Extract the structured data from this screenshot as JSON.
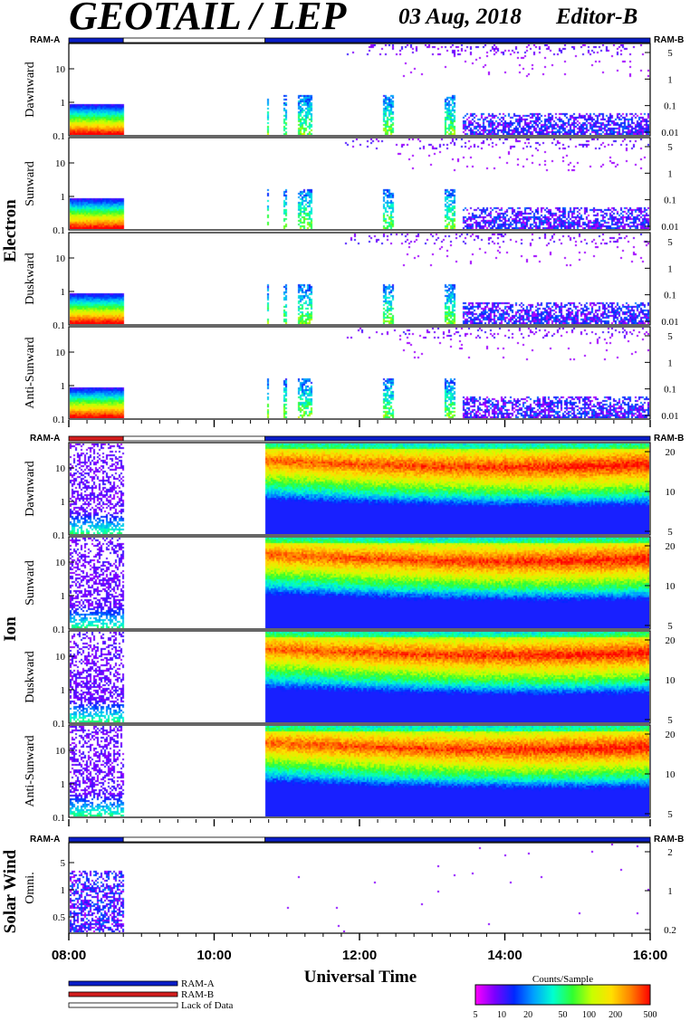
{
  "header": {
    "title": "GEOTAIL / LEP",
    "date": "03 Aug, 2018",
    "editor": "Editor-B"
  },
  "ram_labels": {
    "left": "RAM-A",
    "right": "RAM-B"
  },
  "colors": {
    "ram_a": "#0a1ec8",
    "ram_b": "#d21e1e",
    "lack_of_data": "#ffffff",
    "frame": "#000000"
  },
  "chart_data": {
    "type": "heatmap",
    "xlabel": "Universal Time",
    "x_ticks": [
      "08:00",
      "10:00",
      "12:00",
      "14:00",
      "16:00"
    ],
    "x_range_hours": [
      8,
      16
    ],
    "colorbar": {
      "label": "Counts/Sample",
      "ticks": [
        "5",
        "10",
        "20",
        "50",
        "100",
        "200",
        "500"
      ],
      "range": [
        5,
        500
      ],
      "scale": "log",
      "colors": [
        "#ff00ff",
        "#7a00ff",
        "#0028ff",
        "#00a0ff",
        "#00ffd0",
        "#30ff30",
        "#c8ff00",
        "#ffe000",
        "#ff8000",
        "#ff0000"
      ]
    },
    "groups": [
      {
        "name": "Electron",
        "ram_bar": [
          {
            "mode": "RAM-A",
            "start": 8.0,
            "end": 8.75
          },
          {
            "mode": "Lack of Data",
            "start": 8.75,
            "end": 10.7
          },
          {
            "mode": "RAM-A",
            "start": 10.7,
            "end": 16.0
          }
        ],
        "left_ticks": [
          "10",
          "1",
          "0.1"
        ],
        "right_ticks": [
          "5",
          "1",
          "0.1",
          "0.01"
        ],
        "panels": [
          "Dawnward",
          "Sunward",
          "Duskward",
          "Anti-Sunward"
        ]
      },
      {
        "name": "Ion",
        "ram_bar": [
          {
            "mode": "RAM-B",
            "start": 8.0,
            "end": 8.75
          },
          {
            "mode": "Lack of Data",
            "start": 8.75,
            "end": 10.7
          },
          {
            "mode": "RAM-A",
            "start": 10.7,
            "end": 16.0
          }
        ],
        "left_ticks": [
          "10",
          "1",
          "0.1"
        ],
        "right_ticks": [
          "20",
          "10",
          "5"
        ],
        "panels": [
          "Dawnward",
          "Sunward",
          "Duskward",
          "Anti-Sunward"
        ]
      },
      {
        "name": "Solar Wind",
        "ram_bar": [
          {
            "mode": "RAM-A",
            "start": 8.0,
            "end": 8.75
          },
          {
            "mode": "Lack of Data",
            "start": 8.75,
            "end": 10.7
          },
          {
            "mode": "RAM-A",
            "start": 10.7,
            "end": 16.0
          }
        ],
        "left_ticks": [
          "5",
          "1",
          "0.5"
        ],
        "right_ticks": [
          "2",
          "1",
          "0.2"
        ],
        "panels": [
          "Omni."
        ]
      }
    ],
    "data_intervals_ut": [
      [
        8.0,
        8.75
      ],
      [
        10.7,
        16.0
      ]
    ]
  },
  "legend": {
    "items": [
      {
        "label": "RAM-A",
        "color": "#0a1ec8"
      },
      {
        "label": "RAM-B",
        "color": "#d21e1e"
      },
      {
        "label": "Lack of Data",
        "color": "#ffffff"
      }
    ]
  }
}
